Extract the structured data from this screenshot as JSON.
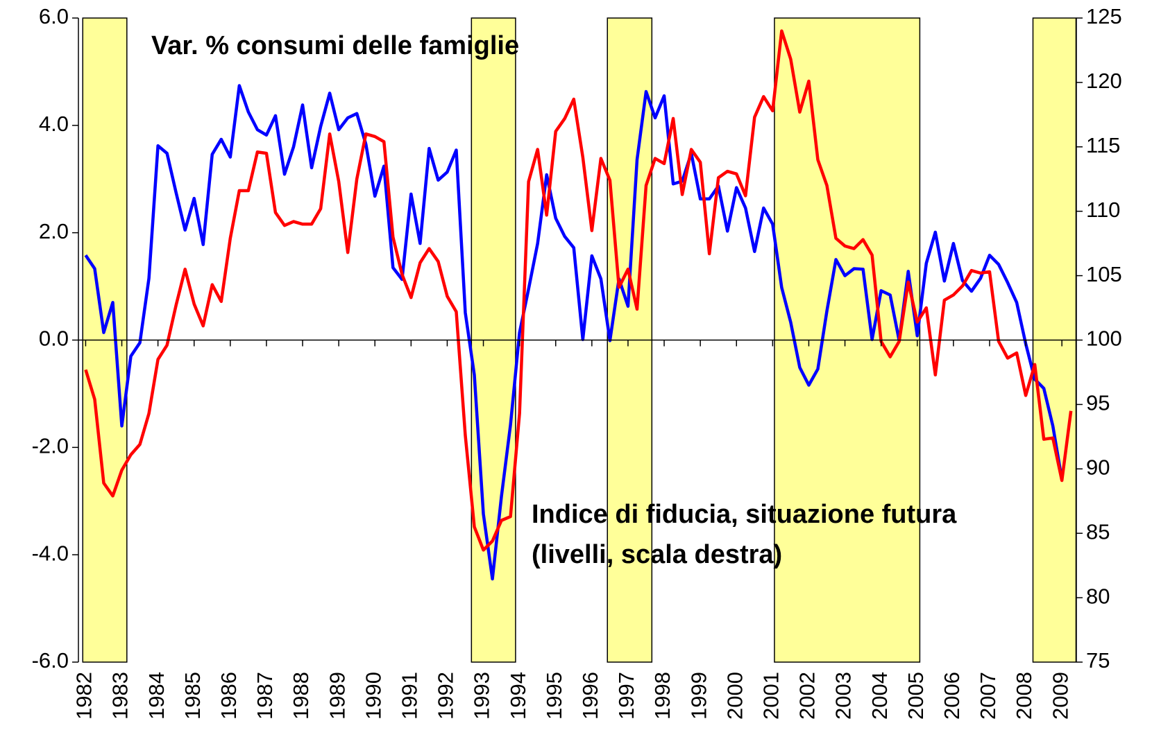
{
  "chart_data": {
    "type": "line",
    "annotations": [
      {
        "text": "Var. % consumi delle famiglie",
        "color": "#0000cc"
      },
      {
        "text": "Indice di fiducia, situazione futura",
        "color": "#ff0000"
      },
      {
        "text": "(livelli, scala destra)",
        "color": "#ff0000"
      }
    ],
    "x": [
      1982,
      1982.25,
      1982.5,
      1982.75,
      1983,
      1983.25,
      1983.5,
      1983.75,
      1984,
      1984.25,
      1984.5,
      1984.75,
      1985,
      1985.25,
      1985.5,
      1985.75,
      1986,
      1986.25,
      1986.5,
      1986.75,
      1987,
      1987.25,
      1987.5,
      1987.75,
      1988,
      1988.25,
      1988.5,
      1988.75,
      1989,
      1989.25,
      1989.5,
      1989.75,
      1990,
      1990.25,
      1990.5,
      1990.75,
      1991,
      1991.25,
      1991.5,
      1991.75,
      1992,
      1992.25,
      1992.5,
      1992.75,
      1993,
      1993.25,
      1993.5,
      1993.75,
      1994,
      1994.25,
      1994.5,
      1994.75,
      1995,
      1995.25,
      1995.5,
      1995.75,
      1996,
      1996.25,
      1996.5,
      1996.75,
      1997,
      1997.25,
      1997.5,
      1997.75,
      1998,
      1998.25,
      1998.5,
      1998.75,
      1999,
      1999.25,
      1999.5,
      1999.75,
      2000,
      2000.25,
      2000.5,
      2000.75,
      2001,
      2001.25,
      2001.5,
      2001.75,
      2002,
      2002.25,
      2002.5,
      2002.75,
      2003,
      2003.25,
      2003.5,
      2003.75,
      2004,
      2004.25,
      2004.5,
      2004.75,
      2005,
      2005.25,
      2005.5,
      2005.75,
      2006,
      2006.25,
      2006.5,
      2006.75,
      2007,
      2007.25,
      2007.5,
      2007.75,
      2008,
      2008.25,
      2008.5,
      2008.75,
      2009,
      2009.25
    ],
    "xlim": [
      1981.8,
      2009.4
    ],
    "xticks": [
      1982,
      1983,
      1984,
      1985,
      1986,
      1987,
      1988,
      1989,
      1990,
      1991,
      1992,
      1993,
      1994,
      1995,
      1996,
      1997,
      1998,
      1999,
      2000,
      2001,
      2002,
      2003,
      2004,
      2005,
      2006,
      2007,
      2008,
      2009
    ],
    "ylim": [
      -6,
      6
    ],
    "yticks": [
      {
        "value": -6,
        "label": "-6.0"
      },
      {
        "value": -4,
        "label": "-4.0"
      },
      {
        "value": -2,
        "label": "-2.0"
      },
      {
        "value": 0,
        "label": "0.0"
      },
      {
        "value": 2,
        "label": "2.0"
      },
      {
        "value": 4,
        "label": "4.0"
      },
      {
        "value": 6,
        "label": "6.0"
      }
    ],
    "y2lim": [
      75,
      125
    ],
    "y2ticks": [
      75,
      80,
      85,
      90,
      95,
      100,
      105,
      110,
      115,
      120,
      125
    ],
    "shaded": [
      [
        1981.92,
        1983.14
      ],
      [
        1992.67,
        1993.89
      ],
      [
        1996.43,
        1997.66
      ],
      [
        2001.05,
        2005.07
      ],
      [
        2008.2,
        2009.39
      ]
    ],
    "shade_color": "#ffff99",
    "series": [
      {
        "color": "#0000ff",
        "axis": "y",
        "values": [
          1.58,
          1.33,
          0.14,
          0.7,
          -1.6,
          -0.3,
          -0.05,
          1.15,
          3.62,
          3.48,
          2.75,
          2.05,
          2.64,
          1.78,
          3.46,
          3.74,
          3.41,
          4.74,
          4.25,
          3.92,
          3.82,
          4.18,
          3.09,
          3.6,
          4.38,
          3.21,
          3.98,
          4.6,
          3.92,
          4.14,
          4.22,
          3.65,
          2.68,
          3.24,
          1.35,
          1.13,
          2.72,
          1.8,
          3.57,
          2.98,
          3.13,
          3.54,
          0.51,
          -0.65,
          -3.24,
          -4.45,
          -2.91,
          -1.58,
          0.14,
          0.95,
          1.8,
          3.08,
          2.27,
          1.93,
          1.72,
          0.01,
          1.57,
          1.14,
          -0.01,
          1.14,
          0.63,
          3.36,
          4.63,
          4.14,
          4.55,
          2.91,
          2.96,
          3.48,
          2.63,
          2.63,
          2.87,
          2.03,
          2.84,
          2.46,
          1.65,
          2.46,
          2.16,
          0.98,
          0.33,
          -0.51,
          -0.84,
          -0.54,
          0.54,
          1.5,
          1.2,
          1.33,
          1.32,
          0.01,
          0.92,
          0.84,
          -0.01,
          1.28,
          0.08,
          1.43,
          2.01,
          1.1,
          1.8,
          1.11,
          0.91,
          1.15,
          1.58,
          1.41,
          1.07,
          0.7,
          -0.07,
          -0.73,
          -0.9,
          -1.6,
          -2.6,
          null
        ]
      },
      {
        "color": "#ff0000",
        "axis": "y2",
        "values": [
          97.7,
          95.4,
          88.9,
          87.9,
          89.9,
          91.1,
          91.9,
          94.3,
          98.5,
          99.6,
          102.7,
          105.5,
          102.8,
          101.1,
          104.3,
          103.0,
          107.9,
          111.6,
          111.6,
          114.6,
          114.5,
          109.9,
          108.9,
          109.2,
          109.0,
          109.0,
          110.2,
          116.0,
          112.3,
          106.8,
          112.5,
          116.0,
          115.8,
          115.4,
          108.0,
          105.1,
          103.3,
          106.0,
          107.1,
          106.1,
          103.4,
          102.2,
          92.6,
          85.5,
          83.7,
          84.4,
          86.0,
          86.3,
          94.3,
          112.3,
          114.8,
          109.7,
          116.2,
          117.2,
          118.7,
          114.2,
          108.5,
          114.1,
          112.4,
          104.1,
          105.5,
          102.4,
          112.0,
          114.1,
          113.7,
          117.2,
          111.3,
          114.8,
          113.8,
          106.7,
          112.6,
          113.1,
          112.9,
          111.2,
          117.3,
          118.9,
          117.8,
          124.0,
          121.8,
          117.7,
          120.1,
          114.0,
          112.0,
          107.9,
          107.3,
          107.1,
          107.8,
          106.6,
          99.9,
          98.7,
          99.9,
          104.5,
          101.4,
          102.5,
          97.3,
          103.1,
          103.5,
          104.2,
          105.4,
          105.2,
          105.3,
          99.9,
          98.6,
          99.0,
          95.7,
          98.1,
          92.3,
          92.4,
          89.1,
          94.5
        ]
      }
    ]
  }
}
